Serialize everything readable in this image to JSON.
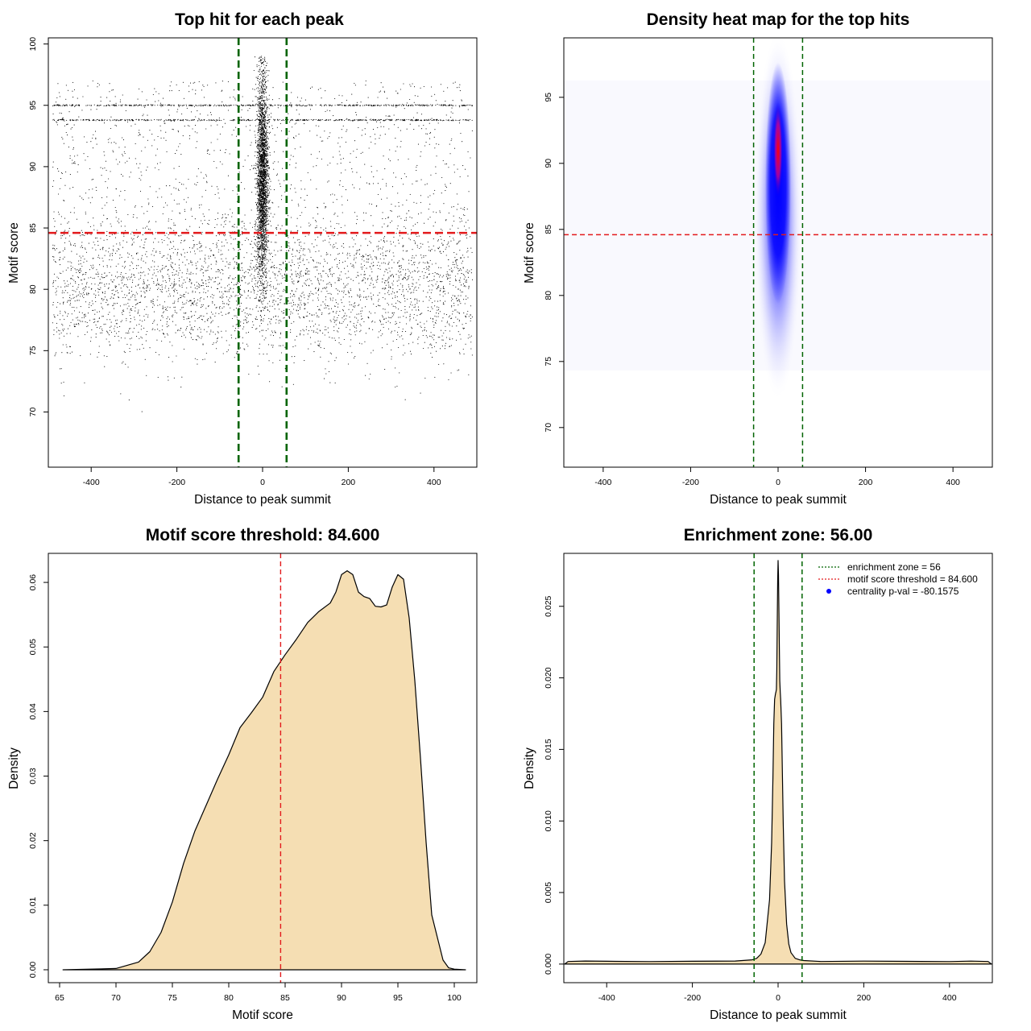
{
  "chart_data": [
    {
      "type": "scatter",
      "title": "Top hit for each peak",
      "xlabel": "Distance to peak summit",
      "ylabel": "Motif score",
      "xlim": [
        -500,
        500
      ],
      "ylim": [
        65.5,
        100.5
      ],
      "xticks": [
        "-400",
        "-200",
        "0",
        "200",
        "400"
      ],
      "yticks": [
        "70",
        "75",
        "80",
        "85",
        "90",
        "95",
        "100"
      ],
      "grid": false,
      "description_of_points": {
        "central_cluster": {
          "x_range": [
            -20,
            20
          ],
          "y_range": [
            73,
            99
          ],
          "n_points": 6000
        },
        "background": {
          "x_range": [
            -490,
            490
          ],
          "y_range": [
            70,
            98
          ],
          "n_points": 5000
        },
        "dense_rows_y": [
          95,
          93.8
        ]
      },
      "vlines": [
        -56,
        56
      ],
      "hline": 84.6,
      "colors": {
        "points": "#000000",
        "vlines": "#006400",
        "hline": "#e31a1c"
      }
    },
    {
      "type": "heatmap",
      "title": "Density heat map for the top hits",
      "xlabel": "Distance to peak summit",
      "ylabel": "Motif score",
      "xlim": [
        -490,
        490
      ],
      "ylim": [
        67,
        99.5
      ],
      "xticks": [
        "-400",
        "-200",
        "0",
        "200",
        "400"
      ],
      "yticks": [
        "70",
        "75",
        "80",
        "85",
        "90",
        "95"
      ],
      "density_center": {
        "x": 0,
        "y": 91
      },
      "vlines": [
        -56,
        56
      ],
      "hline": 84.6,
      "colors": {
        "low": "#ffffff",
        "mid": "#0000ff",
        "high": "#ff0000",
        "vlines": "#006400",
        "hline": "#e31a1c"
      }
    },
    {
      "type": "area",
      "title": "Motif score threshold: 84.600",
      "xlabel": "Motif score",
      "ylabel": "Density",
      "xlim": [
        64,
        102
      ],
      "ylim": [
        -0.002,
        0.0645
      ],
      "xticks": [
        "65",
        "70",
        "75",
        "80",
        "85",
        "90",
        "95",
        "100"
      ],
      "yticks": [
        "0.00",
        "0.01",
        "0.02",
        "0.03",
        "0.04",
        "0.05",
        "0.06"
      ],
      "x": [
        65.3,
        70,
        72,
        73,
        74,
        75,
        76,
        77,
        78,
        79,
        80,
        81,
        82,
        83,
        84,
        85,
        86,
        87,
        88,
        89,
        89.5,
        90,
        90.5,
        91,
        91.5,
        92,
        92.5,
        93,
        93.5,
        94,
        94.5,
        95,
        95.5,
        96,
        96.5,
        97,
        97.5,
        98,
        99,
        99.5,
        100,
        101
      ],
      "values": [
        0,
        0.0002,
        0.0012,
        0.0028,
        0.0058,
        0.0105,
        0.0165,
        0.0215,
        0.0255,
        0.0295,
        0.0333,
        0.0375,
        0.0398,
        0.0422,
        0.0462,
        0.0488,
        0.0512,
        0.0538,
        0.0555,
        0.0568,
        0.0585,
        0.0612,
        0.0618,
        0.0612,
        0.0585,
        0.0578,
        0.0575,
        0.0563,
        0.0562,
        0.0565,
        0.0593,
        0.0612,
        0.0605,
        0.0545,
        0.0448,
        0.0328,
        0.0198,
        0.0085,
        0.0015,
        0.0003,
        0.0001,
        0
      ],
      "vline": 84.6,
      "colors": {
        "fill": "#f5deb3",
        "line": "#000000",
        "vline": "#e31a1c"
      }
    },
    {
      "type": "area",
      "title": "Enrichment zone: 56.00",
      "xlabel": "Distance to peak summit",
      "ylabel": "Density",
      "xlim": [
        -500,
        500
      ],
      "ylim": [
        -0.0013,
        0.0287
      ],
      "xticks": [
        "-400",
        "-200",
        "0",
        "200",
        "400"
      ],
      "yticks": [
        "0.000",
        "0.005",
        "0.010",
        "0.015",
        "0.020",
        "0.025"
      ],
      "x": [
        -498,
        -490,
        -450,
        -400,
        -300,
        -200,
        -100,
        -60,
        -50,
        -40,
        -30,
        -20,
        -15,
        -12,
        -10,
        -8,
        -6,
        -5,
        -4,
        -3,
        -2,
        -1,
        0,
        1,
        2,
        3,
        4,
        5,
        6,
        8,
        10,
        12,
        15,
        20,
        25,
        30,
        40,
        50,
        60,
        100,
        200,
        300,
        400,
        450,
        490,
        498
      ],
      "values": [
        0.0,
        0.00018,
        0.0002,
        0.00018,
        0.0002,
        0.00017,
        0.0002,
        0.0003,
        0.0004,
        0.0007,
        0.0015,
        0.0045,
        0.0085,
        0.013,
        0.0168,
        0.0185,
        0.0189,
        0.019,
        0.0192,
        0.0205,
        0.0235,
        0.0268,
        0.0282,
        0.0272,
        0.0245,
        0.022,
        0.0198,
        0.019,
        0.0185,
        0.0168,
        0.0135,
        0.0098,
        0.0058,
        0.0028,
        0.0014,
        0.0008,
        0.0004,
        0.0003,
        0.00025,
        0.0002,
        0.00018,
        0.0002,
        0.00018,
        0.0002,
        0.00018,
        0.0
      ],
      "vlines": [
        -56,
        56
      ],
      "legend": {
        "position": "top-right",
        "entries": [
          "enrichment zone = 56",
          "motif score threshold = 84.600",
          "centrality p-val = -80.1575"
        ]
      },
      "colors": {
        "fill": "#f5deb3",
        "line": "#000000",
        "vlines": "#006400",
        "threshold": "#e31a1c",
        "pval": "#0000ff"
      }
    }
  ]
}
